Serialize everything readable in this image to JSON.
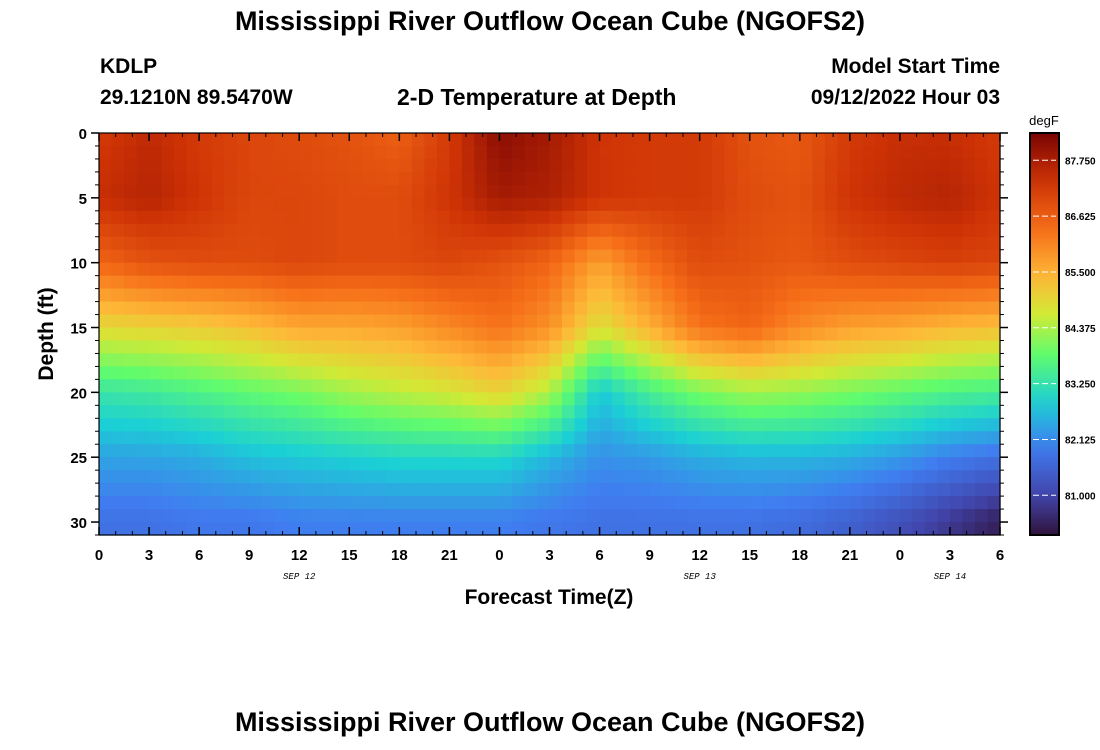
{
  "header": {
    "title": "Mississippi River Outflow Ocean Cube (NGOFS2)",
    "station_id": "KDLP",
    "station_coords": "29.1210N  89.5470W",
    "plot_subtitle": "2-D Temperature at Depth",
    "model_start_label": "Model Start Time",
    "model_start_value": "09/12/2022 Hour 03"
  },
  "footer": {
    "title": "Mississippi River Outflow Ocean Cube (NGOFS2)"
  },
  "chart_data": {
    "type": "heatmap",
    "title": "2-D Temperature at Depth",
    "xlabel": "Forecast Time(Z)",
    "ylabel": "Depth (ft)",
    "x_range_hours": [
      0,
      54
    ],
    "y_range_ft": [
      0,
      31
    ],
    "x_ticks": [
      {
        "h": 0,
        "label": "0"
      },
      {
        "h": 3,
        "label": "3"
      },
      {
        "h": 6,
        "label": "6"
      },
      {
        "h": 9,
        "label": "9"
      },
      {
        "h": 12,
        "label": "12"
      },
      {
        "h": 15,
        "label": "15"
      },
      {
        "h": 18,
        "label": "18"
      },
      {
        "h": 21,
        "label": "21"
      },
      {
        "h": 24,
        "label": "0"
      },
      {
        "h": 27,
        "label": "3"
      },
      {
        "h": 30,
        "label": "6"
      },
      {
        "h": 33,
        "label": "9"
      },
      {
        "h": 36,
        "label": "12"
      },
      {
        "h": 39,
        "label": "15"
      },
      {
        "h": 42,
        "label": "18"
      },
      {
        "h": 45,
        "label": "21"
      },
      {
        "h": 48,
        "label": "0"
      },
      {
        "h": 51,
        "label": "3"
      },
      {
        "h": 54,
        "label": "6"
      }
    ],
    "date_labels": [
      {
        "h": 12,
        "label": "SEP 12"
      },
      {
        "h": 36,
        "label": "SEP 13"
      },
      {
        "h": 51,
        "label": "SEP 14"
      }
    ],
    "y_ticks": [
      0,
      5,
      10,
      15,
      20,
      25,
      30
    ],
    "colorbar": {
      "unit": "degF",
      "range": [
        80.2,
        88.3
      ],
      "ticks": [
        81.0,
        82.125,
        83.25,
        84.375,
        85.5,
        86.625,
        87.75
      ],
      "tick_labels": [
        "81.000",
        "82.125",
        "83.250",
        "84.375",
        "85.500",
        "86.625",
        "87.750"
      ]
    },
    "time_samples_hours": [
      0,
      3,
      6,
      9,
      12,
      15,
      18,
      21,
      24,
      27,
      30,
      33,
      36,
      39,
      42,
      45,
      48,
      51,
      54
    ],
    "depth_samples_ft": [
      0,
      5,
      10,
      15,
      20,
      25,
      30
    ],
    "temperature_degF": [
      [
        87.2,
        87.5,
        87.2,
        87.0,
        86.9,
        86.8,
        86.6,
        87.2,
        88.1,
        87.8,
        87.3,
        87.2,
        87.2,
        86.8,
        86.7,
        87.2,
        87.4,
        87.4,
        87.2
      ],
      [
        87.4,
        87.6,
        87.3,
        87.0,
        87.0,
        86.9,
        86.9,
        87.3,
        87.8,
        87.7,
        87.3,
        87.2,
        87.2,
        86.9,
        86.8,
        87.3,
        87.5,
        87.6,
        87.3
      ],
      [
        86.5,
        86.8,
        86.9,
        86.9,
        87.0,
        86.9,
        86.9,
        87.0,
        86.8,
        86.5,
        85.7,
        86.4,
        86.9,
        86.8,
        86.7,
        86.9,
        87.0,
        87.1,
        87.0
      ],
      [
        84.9,
        85.0,
        85.1,
        85.3,
        85.6,
        85.6,
        85.7,
        86.0,
        86.3,
        85.9,
        84.8,
        85.5,
        86.3,
        86.5,
        86.0,
        85.7,
        85.6,
        85.4,
        85.3
      ],
      [
        83.3,
        83.4,
        83.6,
        83.8,
        84.0,
        84.3,
        84.5,
        84.7,
        85.0,
        84.4,
        82.8,
        83.5,
        84.0,
        84.3,
        84.2,
        84.0,
        83.8,
        83.6,
        83.5
      ],
      [
        82.4,
        82.4,
        82.5,
        82.7,
        82.8,
        82.9,
        83.0,
        83.0,
        83.0,
        82.6,
        82.2,
        82.3,
        82.5,
        82.6,
        82.6,
        82.5,
        82.3,
        82.0,
        81.8
      ],
      [
        81.8,
        81.8,
        81.9,
        81.9,
        82.0,
        82.0,
        82.0,
        82.0,
        82.0,
        81.9,
        81.8,
        81.8,
        81.8,
        81.8,
        81.7,
        81.5,
        81.2,
        80.8,
        80.4
      ]
    ]
  }
}
